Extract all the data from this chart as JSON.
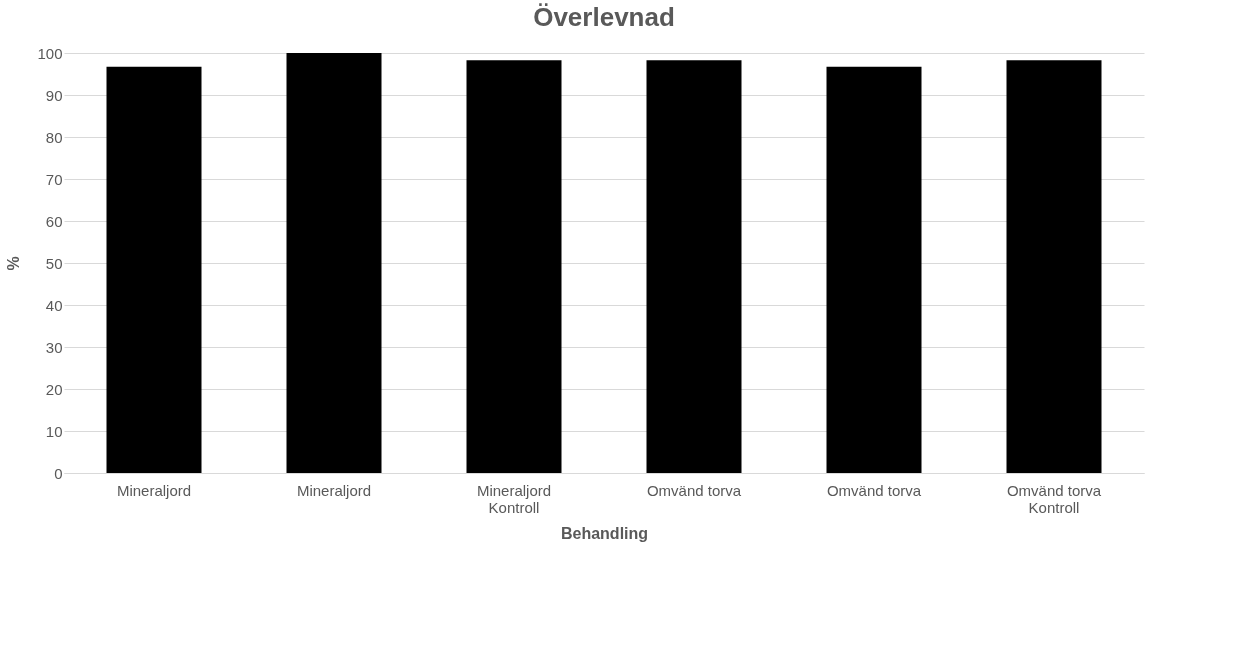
{
  "chart_data": {
    "type": "bar",
    "title": "Överlevnad",
    "xlabel": "Behandling",
    "ylabel": "%",
    "categories": [
      "Mineraljord",
      "Mineraljord",
      "Mineraljord Kontroll",
      "Omvänd torva",
      "Omvänd torva",
      "Omvänd torva Kontroll"
    ],
    "values": [
      96.7,
      100,
      98.3,
      98.3,
      96.7,
      98.3
    ],
    "color": "#000000",
    "ylim": [
      0,
      100
    ],
    "yticks": [
      0,
      10,
      20,
      30,
      40,
      50,
      60,
      70,
      80,
      90,
      100
    ],
    "grid": "y"
  }
}
